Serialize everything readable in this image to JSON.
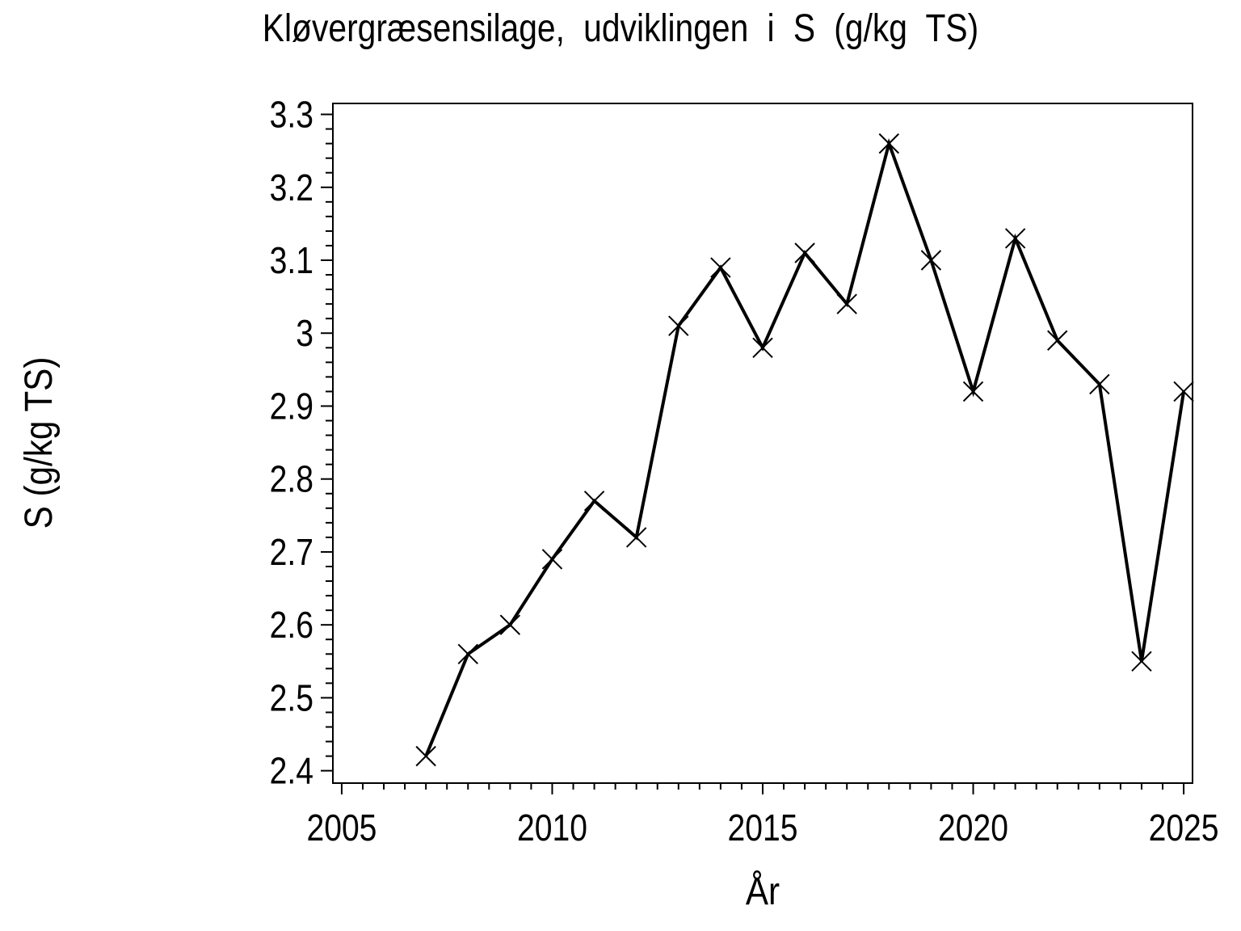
{
  "page": {
    "background": "#ffffff",
    "text_color": "#000000"
  },
  "chart_data": {
    "type": "line",
    "title": "Kløvergræsensilage, udviklingen i S (g/kg TS)",
    "xlabel": "År",
    "ylabel": "S (g/kg TS)",
    "series": [
      {
        "name": "S (g/kg TS)",
        "x": [
          2007,
          2008,
          2009,
          2010,
          2011,
          2012,
          2013,
          2014,
          2015,
          2016,
          2017,
          2018,
          2019,
          2020,
          2021,
          2022,
          2023,
          2024,
          2025
        ],
        "values": [
          2.42,
          2.56,
          2.6,
          2.69,
          2.77,
          2.72,
          3.01,
          3.09,
          2.98,
          3.11,
          3.04,
          3.26,
          3.1,
          2.92,
          3.13,
          2.99,
          2.93,
          2.55,
          2.92
        ]
      }
    ],
    "marker": "x",
    "line_color": "#000000",
    "background": "#ffffff",
    "grid": false,
    "legend": "none",
    "xlim": [
      2004.79,
      2025.21
    ],
    "ylim": [
      2.383,
      3.315
    ],
    "xticks": {
      "values": [
        2005,
        2010,
        2015,
        2020,
        2025
      ],
      "labels": [
        "2005",
        "2010",
        "2015",
        "2020",
        "2025"
      ],
      "minor_step": 0.5
    },
    "yticks": {
      "values": [
        2.4,
        2.5,
        2.6,
        2.7,
        2.8,
        2.9,
        3.0,
        3.1,
        3.2,
        3.3
      ],
      "labels": [
        "2.4",
        "2.5",
        "2.6",
        "2.7",
        "2.8",
        "2.9",
        "3",
        "3.1",
        "3.2",
        "3.3"
      ],
      "minor_step": 0.02
    }
  }
}
